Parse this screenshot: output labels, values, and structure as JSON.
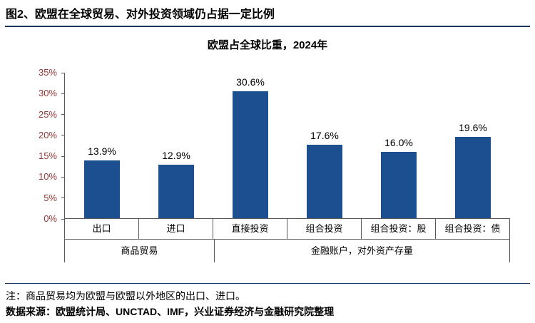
{
  "header": {
    "figure_title": "图2、欧盟在全球贸易、对外投资领域仍占据一定比例"
  },
  "chart_data": {
    "type": "bar",
    "title": "欧盟占全球比重，2024年",
    "categories": [
      "出口",
      "进口",
      "直接投资",
      "组合投资",
      "组合投资：股",
      "组合投资：债"
    ],
    "values": [
      13.9,
      12.9,
      30.6,
      17.6,
      16.0,
      19.6
    ],
    "value_labels": [
      "13.9%",
      "12.9%",
      "30.6%",
      "17.6%",
      "16.0%",
      "19.6%"
    ],
    "groups": [
      {
        "label": "商品贸易",
        "span": 2
      },
      {
        "label": "金融账户，对外资产存量",
        "span": 4
      }
    ],
    "ylim": [
      0,
      35
    ],
    "ytick_step": 5,
    "yticks": [
      "0%",
      "5%",
      "10%",
      "15%",
      "20%",
      "25%",
      "30%",
      "35%"
    ],
    "grid": false,
    "legend": "none",
    "bar_color": "#1B4F8F",
    "axis_text_color": "#943634"
  },
  "footer": {
    "note": "注：商品贸易均为欧盟与欧盟以外地区的出口、进口。",
    "source": "数据来源：欧盟统计局、UNCTAD、IMF，兴业证券经济与金融研究院整理"
  },
  "colors": {
    "rule": "#16365C",
    "bar": "#1B4F8F",
    "axis_line": "#595959"
  }
}
